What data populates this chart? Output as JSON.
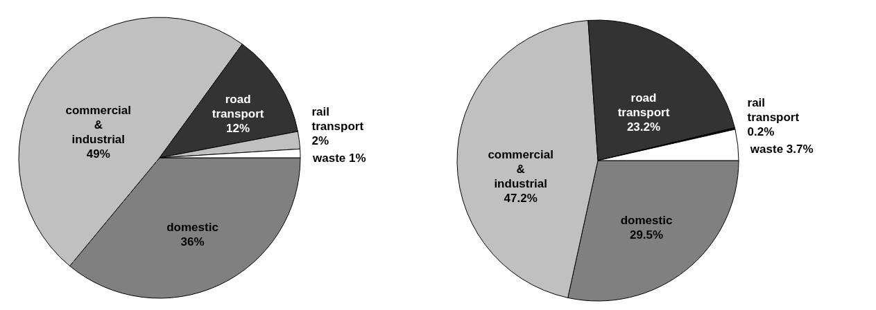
{
  "chart_data": [
    {
      "type": "pie",
      "categories": [
        "domestic",
        "commercial & industrial",
        "road transport",
        "rail transport",
        "waste"
      ],
      "values": [
        36,
        49,
        12,
        2,
        1
      ],
      "value_labels": [
        "36%",
        "49%",
        "12%",
        "2%",
        "1%"
      ],
      "colors": [
        "#808080",
        "#c0c0c0",
        "#333333",
        "#c0c0c0",
        "#ffffff"
      ]
    },
    {
      "type": "pie",
      "categories": [
        "domestic",
        "commercial & industrial",
        "road transport",
        "rail transport",
        "waste"
      ],
      "values": [
        29.5,
        47.2,
        23.2,
        0.2,
        3.7
      ],
      "value_labels": [
        "29.5%",
        "47.2%",
        "23.2%",
        "0.2%",
        "3.7%"
      ],
      "colors": [
        "#808080",
        "#c0c0c0",
        "#333333",
        "#111111",
        "#ffffff"
      ]
    }
  ]
}
